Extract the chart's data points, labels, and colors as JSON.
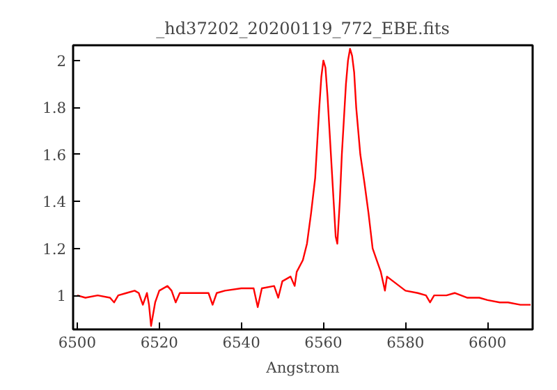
{
  "chart_data": {
    "type": "line",
    "title": "_hd37202_20200119_772_EBE.fits",
    "xlabel": "Angstrom",
    "x": [
      6500,
      6502,
      6505,
      6508,
      6509,
      6510,
      6512,
      6514,
      6515,
      6516,
      6517,
      6517.5,
      6518,
      6519,
      6520,
      6522,
      6523,
      6524,
      6525,
      6528,
      6530,
      6532,
      6533,
      6534,
      6536,
      6540,
      6543,
      6544,
      6545,
      6548,
      6549,
      6550,
      6552,
      6553,
      6553.5,
      6555,
      6556,
      6557,
      6558,
      6558.5,
      6559,
      6559.5,
      6560,
      6560.5,
      6561,
      6561.5,
      6562,
      6562.5,
      6563,
      6563.4,
      6564,
      6564.5,
      6565,
      6565.5,
      6566,
      6566.5,
      6567,
      6567.5,
      6568,
      6569,
      6570,
      6571,
      6572,
      6573,
      6574,
      6575,
      6575.5,
      6577,
      6580,
      6583,
      6585,
      6586,
      6587,
      6590,
      6592,
      6595,
      6598,
      6600,
      6603,
      6605,
      6608,
      6610.5
    ],
    "series": [
      {
        "color": "#ff0000",
        "values": [
          1.0,
          0.99,
          1.0,
          0.99,
          0.97,
          1.0,
          1.01,
          1.02,
          1.01,
          0.96,
          1.01,
          0.96,
          0.87,
          0.97,
          1.02,
          1.04,
          1.02,
          0.97,
          1.01,
          1.01,
          1.01,
          1.01,
          0.96,
          1.01,
          1.02,
          1.03,
          1.03,
          0.95,
          1.03,
          1.04,
          0.99,
          1.06,
          1.08,
          1.04,
          1.1,
          1.15,
          1.22,
          1.35,
          1.5,
          1.65,
          1.8,
          1.93,
          2.0,
          1.97,
          1.85,
          1.7,
          1.55,
          1.4,
          1.25,
          1.22,
          1.4,
          1.6,
          1.75,
          1.9,
          2.0,
          2.05,
          2.02,
          1.95,
          1.8,
          1.6,
          1.48,
          1.35,
          1.2,
          1.15,
          1.1,
          1.02,
          1.08,
          1.06,
          1.02,
          1.01,
          1.0,
          0.97,
          1.0,
          1.0,
          1.01,
          0.99,
          0.99,
          0.98,
          0.97,
          0.97,
          0.96,
          0.96
        ]
      }
    ],
    "xlim": [
      6499,
      6611
    ],
    "ylim": [
      0.855,
      2.065
    ],
    "xticks": [
      6500,
      6520,
      6540,
      6560,
      6580,
      6600
    ],
    "yticks": [
      1,
      1.2,
      1.4,
      1.6,
      1.8,
      2
    ],
    "marker": "none",
    "line_style": "solid"
  }
}
